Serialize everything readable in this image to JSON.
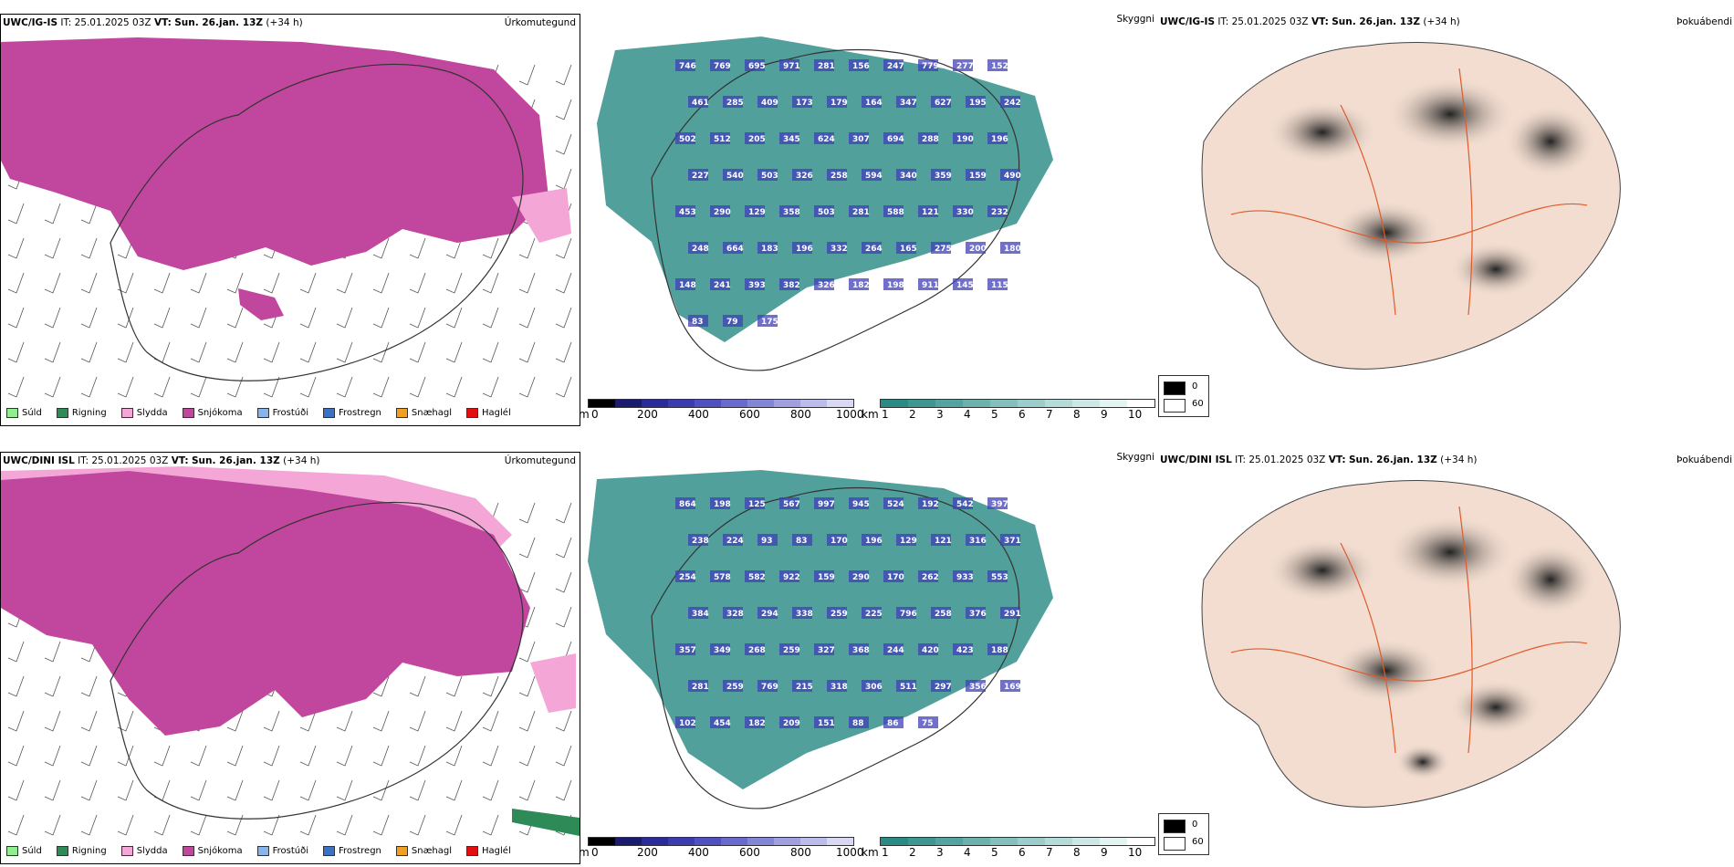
{
  "rows": [
    {
      "precip": {
        "header": {
          "model": "UWC/IG-IS",
          "it": "IT: 25.01.2025 03Z",
          "vt_label": "VT:",
          "vt": "Sun. 26.jan. 13Z",
          "lead": "(+34 h)"
        },
        "title_right": "Úrkomutegund"
      },
      "cloud": {
        "title_right": "Skyggni",
        "numbers": [
          "746",
          "769",
          "695",
          "971",
          "281",
          "156",
          "247",
          "779",
          "277",
          "152",
          "461",
          "285",
          "409",
          "173",
          "179",
          "164",
          "347",
          "627",
          "195",
          "242",
          "502",
          "512",
          "205",
          "345",
          "624",
          "307",
          "694",
          "288",
          "190",
          "196",
          "227",
          "540",
          "503",
          "326",
          "258",
          "594",
          "340",
          "359",
          "159",
          "490",
          "453",
          "290",
          "129",
          "358",
          "503",
          "281",
          "588",
          "121",
          "330",
          "232",
          "248",
          "664",
          "183",
          "196",
          "332",
          "264",
          "165",
          "275",
          "200",
          "180",
          "148",
          "241",
          "393",
          "382",
          "326",
          "182",
          "198",
          "911",
          "145",
          "115",
          "83",
          "79",
          "175"
        ]
      },
      "fog": {
        "header": {
          "model": "UWC/IG-IS",
          "it": "IT: 25.01.2025 03Z",
          "vt_label": "VT:",
          "vt": "Sun. 26.jan. 13Z",
          "lead": "(+34 h)"
        },
        "title_right": "Þokuábendi"
      }
    },
    {
      "precip": {
        "header": {
          "model": "UWC/DINI ISL",
          "it": "IT: 25.01.2025 03Z",
          "vt_label": "VT:",
          "vt": "Sun. 26.jan. 13Z",
          "lead": "(+34 h)"
        },
        "title_right": "Úrkomutegund"
      },
      "cloud": {
        "title_right": "Skyggni",
        "numbers": [
          "864",
          "198",
          "125",
          "567",
          "997",
          "945",
          "524",
          "192",
          "542",
          "397",
          "238",
          "224",
          "93",
          "83",
          "170",
          "196",
          "129",
          "121",
          "316",
          "371",
          "254",
          "578",
          "582",
          "922",
          "159",
          "290",
          "170",
          "262",
          "933",
          "553",
          "384",
          "328",
          "294",
          "338",
          "259",
          "225",
          "796",
          "258",
          "376",
          "291",
          "357",
          "349",
          "268",
          "259",
          "327",
          "368",
          "244",
          "420",
          "423",
          "188",
          "281",
          "259",
          "769",
          "215",
          "318",
          "306",
          "511",
          "297",
          "356",
          "169",
          "102",
          "454",
          "182",
          "209",
          "151",
          "88",
          "86",
          "75"
        ]
      },
      "fog": {
        "header": {
          "model": "UWC/DINI ISL",
          "it": "IT: 25.01.2025 03Z",
          "vt_label": "VT:",
          "vt": "Sun. 26.jan. 13Z",
          "lead": "(+34 h)"
        },
        "title_right": "Þokuábendi"
      }
    }
  ],
  "precip_legend": [
    {
      "label": "Súld",
      "color": "#90ee90"
    },
    {
      "label": "Rigning",
      "color": "#2e8b57"
    },
    {
      "label": "Slydda",
      "color": "#f4a6d7"
    },
    {
      "label": "Snjókoma",
      "color": "#c0479d"
    },
    {
      "label": "Frostúði",
      "color": "#87b5ea"
    },
    {
      "label": "Frostregn",
      "color": "#3a72c4"
    },
    {
      "label": "Snæhagl",
      "color": "#f0a020"
    },
    {
      "label": "Haglél",
      "color": "#e01010"
    }
  ],
  "height_bar": {
    "unit": "m",
    "ticks": [
      "0",
      "200",
      "400",
      "600",
      "800",
      "1000"
    ],
    "colors": [
      "#000000",
      "#1a1a6e",
      "#2a2a9a",
      "#3c3cb0",
      "#5050c0",
      "#6a6acc",
      "#8585d6",
      "#a0a0e0",
      "#bcbcea",
      "#d8d8f4"
    ]
  },
  "vis_bar": {
    "unit": "km",
    "ticks": [
      "1",
      "2",
      "3",
      "4",
      "5",
      "6",
      "7",
      "8",
      "9",
      "10"
    ],
    "colors": [
      "#2a8a84",
      "#3e9690",
      "#55a39e",
      "#6cb1ac",
      "#84bfbb",
      "#9ccdca",
      "#b4dbd8",
      "#cce8e6",
      "#e4f4f3",
      "#ffffff"
    ]
  },
  "fog_scale": {
    "high": "0",
    "low": "60"
  },
  "colors": {
    "snow": "#c0479d",
    "sleet": "#f4a6d7",
    "teal": "#3f9690",
    "blue": "#4040b8",
    "orange": "#e07a2a",
    "land": "#f2ddd0",
    "road": "#e05a2a"
  }
}
